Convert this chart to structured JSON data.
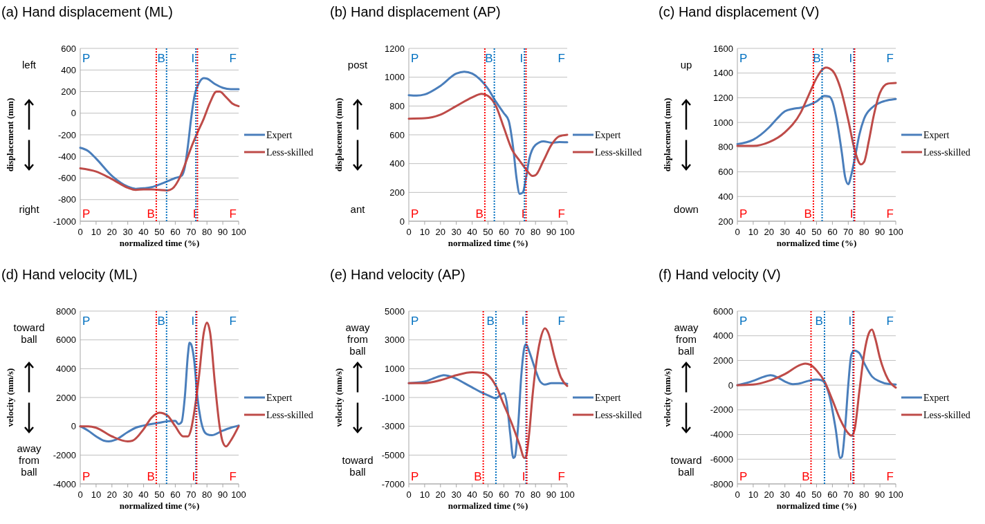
{
  "chart_data": [
    {
      "type": "line",
      "title": "(a) Hand displacement (ML)",
      "xlabel": "normalized time (%)",
      "ylabel": "displacement (mm)",
      "xlim": [
        0,
        100
      ],
      "xticks": [
        0,
        10,
        20,
        30,
        40,
        50,
        60,
        70,
        80,
        90,
        100
      ],
      "ylim": [
        -1000,
        600
      ],
      "yticks": [
        -1000,
        -800,
        -600,
        -400,
        -200,
        0,
        200,
        400,
        600
      ],
      "grid": "y",
      "legend": "right",
      "series": [
        {
          "name": "Expert",
          "color": "#4a7ebb",
          "x": [
            0,
            5,
            10,
            20,
            30,
            35,
            40,
            45,
            50,
            55,
            60,
            64,
            66,
            68,
            70,
            72,
            75,
            78,
            80,
            85,
            90,
            95,
            100
          ],
          "values": [
            -320,
            -350,
            -420,
            -580,
            -680,
            -700,
            -695,
            -685,
            -660,
            -630,
            -600,
            -580,
            -500,
            -300,
            -50,
            150,
            280,
            325,
            320,
            270,
            235,
            222,
            222
          ]
        },
        {
          "name": "Less-skilled",
          "color": "#be4b48",
          "x": [
            0,
            10,
            20,
            30,
            35,
            40,
            45,
            50,
            55,
            58,
            62,
            65,
            68,
            70,
            74,
            78,
            82,
            86,
            88,
            92,
            96,
            100
          ],
          "values": [
            -510,
            -540,
            -610,
            -690,
            -710,
            -705,
            -705,
            -710,
            -715,
            -700,
            -620,
            -520,
            -400,
            -320,
            -180,
            -50,
            100,
            200,
            200,
            150,
            90,
            65
          ]
        }
      ],
      "ref_lines": [
        {
          "axis": "x",
          "value": 54.5,
          "label": "B",
          "color": "#0070c0",
          "line_style": "dotted"
        },
        {
          "axis": "x",
          "value": 73,
          "label": "I",
          "color": "#0070c0",
          "line_style": "dotted"
        },
        {
          "axis": "x",
          "value": 48,
          "label": "B",
          "color": "#ff0000",
          "line_style": "dotted"
        },
        {
          "axis": "x",
          "value": 74,
          "label": "I",
          "color": "#ff0000",
          "line_style": "dotted"
        }
      ],
      "annotations": [
        "left",
        "right",
        "P",
        "F",
        "P",
        "F"
      ]
    },
    {
      "type": "line",
      "title": "(b) Hand displacement (AP)",
      "xlabel": "normalized time (%)",
      "ylabel": "displacement (mm)",
      "xlim": [
        0,
        100
      ],
      "xticks": [
        0,
        10,
        20,
        30,
        40,
        50,
        60,
        70,
        80,
        90,
        100
      ],
      "ylim": [
        0,
        1200
      ],
      "yticks": [
        0,
        200,
        400,
        600,
        800,
        1000,
        1200
      ],
      "grid": "y",
      "legend": "right",
      "series": [
        {
          "name": "Expert",
          "color": "#4a7ebb",
          "x": [
            0,
            5,
            10,
            20,
            30,
            35,
            40,
            45,
            50,
            55,
            60,
            63,
            66,
            68,
            70,
            72,
            74,
            76,
            80,
            85,
            90,
            95,
            100
          ],
          "values": [
            875,
            872,
            880,
            940,
            1025,
            1038,
            1025,
            985,
            920,
            830,
            750,
            700,
            500,
            300,
            190,
            200,
            300,
            430,
            530,
            555,
            545,
            550,
            548
          ]
        },
        {
          "name": "Less-skilled",
          "color": "#be4b48",
          "x": [
            0,
            10,
            20,
            30,
            40,
            46,
            50,
            55,
            60,
            65,
            70,
            74,
            78,
            80,
            85,
            90,
            95,
            100
          ],
          "values": [
            712,
            715,
            740,
            800,
            860,
            885,
            870,
            800,
            650,
            500,
            420,
            360,
            315,
            320,
            420,
            530,
            590,
            600
          ]
        }
      ],
      "ref_lines": [
        {
          "axis": "x",
          "value": 54,
          "label": "B",
          "color": "#0070c0",
          "line_style": "dotted"
        },
        {
          "axis": "x",
          "value": 73,
          "label": "I",
          "color": "#0070c0",
          "line_style": "dotted"
        },
        {
          "axis": "x",
          "value": 48,
          "label": "B",
          "color": "#ff0000",
          "line_style": "dotted"
        },
        {
          "axis": "x",
          "value": 74,
          "label": "I",
          "color": "#ff0000",
          "line_style": "dotted"
        }
      ],
      "annotations": [
        "post",
        "ant",
        "P",
        "F",
        "P",
        "F"
      ]
    },
    {
      "type": "line",
      "title": "(c) Hand displacement (V)",
      "xlabel": "normalized time (%)",
      "ylabel": "displacement (mm)",
      "xlim": [
        0,
        100
      ],
      "xticks": [
        0,
        10,
        20,
        30,
        40,
        50,
        60,
        70,
        80,
        90,
        100
      ],
      "ylim": [
        200,
        1600
      ],
      "yticks": [
        200,
        400,
        600,
        800,
        1000,
        1200,
        1400,
        1600
      ],
      "grid": "y",
      "legend": "right",
      "series": [
        {
          "name": "Expert",
          "color": "#4a7ebb",
          "x": [
            0,
            10,
            20,
            25,
            30,
            35,
            40,
            45,
            50,
            55,
            58,
            60,
            63,
            66,
            68,
            70,
            72,
            74,
            77,
            80,
            85,
            90,
            95,
            100
          ],
          "values": [
            825,
            860,
            960,
            1030,
            1090,
            1110,
            1120,
            1140,
            1170,
            1215,
            1210,
            1170,
            1000,
            750,
            560,
            500,
            580,
            700,
            900,
            1030,
            1120,
            1160,
            1180,
            1190
          ]
        },
        {
          "name": "Less-skilled",
          "color": "#be4b48",
          "x": [
            0,
            10,
            20,
            30,
            40,
            45,
            50,
            53,
            56,
            60,
            65,
            70,
            74,
            78,
            80,
            83,
            86,
            90,
            95,
            100
          ],
          "values": [
            810,
            810,
            840,
            920,
            1080,
            1220,
            1360,
            1420,
            1445,
            1420,
            1280,
            1020,
            780,
            660,
            680,
            850,
            1050,
            1240,
            1315,
            1320
          ]
        }
      ],
      "ref_lines": [
        {
          "axis": "x",
          "value": 53.5,
          "label": "B",
          "color": "#0070c0",
          "line_style": "dotted"
        },
        {
          "axis": "x",
          "value": 73.5,
          "label": "I",
          "color": "#0070c0",
          "line_style": "dotted"
        },
        {
          "axis": "x",
          "value": 48,
          "label": "B",
          "color": "#ff0000",
          "line_style": "dotted"
        },
        {
          "axis": "x",
          "value": 74,
          "label": "I",
          "color": "#ff0000",
          "line_style": "dotted"
        }
      ],
      "annotations": [
        "up",
        "down",
        "P",
        "F",
        "P",
        "F"
      ]
    },
    {
      "type": "line",
      "title": "(d) Hand velocity (ML)",
      "xlabel": "normalized time (%)",
      "ylabel": "velocity (mm/s)",
      "xlim": [
        0,
        100
      ],
      "xticks": [
        0,
        10,
        20,
        30,
        40,
        50,
        60,
        70,
        80,
        90,
        100
      ],
      "ylim": [
        -4000,
        8000
      ],
      "yticks": [
        -4000,
        -2000,
        0,
        2000,
        4000,
        6000,
        8000
      ],
      "grid": "y",
      "legend": "right",
      "series": [
        {
          "name": "Expert",
          "color": "#4a7ebb",
          "x": [
            0,
            5,
            10,
            15,
            18,
            22,
            30,
            35,
            40,
            50,
            55,
            60,
            62,
            64,
            66,
            68,
            69,
            70,
            72,
            74,
            76,
            78,
            80,
            83,
            90,
            95,
            100
          ],
          "values": [
            0,
            -300,
            -700,
            -1000,
            -1050,
            -950,
            -400,
            -100,
            50,
            250,
            350,
            380,
            150,
            300,
            2000,
            5000,
            5800,
            5700,
            4500,
            2000,
            500,
            -300,
            -550,
            -620,
            -300,
            -100,
            50
          ]
        },
        {
          "name": "Less-skilled",
          "color": "#be4b48",
          "x": [
            0,
            5,
            10,
            20,
            30,
            33,
            40,
            45,
            50,
            55,
            60,
            65,
            68,
            70,
            72,
            75,
            78,
            80,
            82,
            85,
            88,
            90,
            92,
            95,
            100
          ],
          "values": [
            0,
            0,
            -100,
            -700,
            -1050,
            -1000,
            -200,
            600,
            950,
            750,
            0,
            -700,
            -700,
            -200,
            1000,
            3500,
            6500,
            7200,
            6500,
            3000,
            0,
            -1100,
            -1400,
            -1000,
            0
          ]
        }
      ],
      "ref_lines": [
        {
          "axis": "x",
          "value": 54.5,
          "label": "B",
          "color": "#0070c0",
          "line_style": "dotted"
        },
        {
          "axis": "x",
          "value": 73,
          "label": "I",
          "color": "#0070c0",
          "line_style": "dotted"
        },
        {
          "axis": "x",
          "value": 48,
          "label": "B",
          "color": "#ff0000",
          "line_style": "dotted"
        },
        {
          "axis": "x",
          "value": 73.5,
          "label": "I",
          "color": "#ff0000",
          "line_style": "dotted"
        }
      ],
      "annotations": [
        "toward ball",
        "away from ball",
        "P",
        "F",
        "P",
        "F"
      ]
    },
    {
      "type": "line",
      "title": "(e) Hand velocity (AP)",
      "xlabel": "normalized time (%)",
      "ylabel": "velocity (mm/s)",
      "xlim": [
        0,
        100
      ],
      "xticks": [
        0,
        10,
        20,
        30,
        40,
        50,
        60,
        70,
        80,
        90,
        100
      ],
      "ylim": [
        -7000,
        5000
      ],
      "yticks": [
        -7000,
        -5000,
        -3000,
        -1000,
        1000,
        3000,
        5000
      ],
      "grid": "y",
      "legend": "right",
      "series": [
        {
          "name": "Expert",
          "color": "#4a7ebb",
          "x": [
            0,
            10,
            15,
            20,
            22,
            25,
            30,
            35,
            40,
            45,
            50,
            55,
            58,
            60,
            62,
            64,
            66,
            67,
            69,
            71,
            73,
            74,
            76,
            80,
            83,
            86,
            90,
            95,
            100
          ],
          "values": [
            0,
            100,
            300,
            500,
            550,
            500,
            300,
            0,
            -300,
            -600,
            -850,
            -1050,
            -800,
            -700,
            -1500,
            -3500,
            -5200,
            -5100,
            -3000,
            500,
            2500,
            2700,
            2200,
            900,
            100,
            -100,
            0,
            0,
            -50
          ]
        },
        {
          "name": "Less-skilled",
          "color": "#be4b48",
          "x": [
            0,
            10,
            20,
            30,
            40,
            47,
            50,
            55,
            60,
            65,
            70,
            73,
            74,
            76,
            78,
            80,
            83,
            86,
            88,
            92,
            96,
            100
          ],
          "values": [
            0,
            0,
            200,
            550,
            750,
            700,
            550,
            -200,
            -1500,
            -2800,
            -4300,
            -5200,
            -5100,
            -3500,
            -1000,
            1000,
            3000,
            3800,
            3500,
            1800,
            400,
            -200
          ]
        }
      ],
      "ref_lines": [
        {
          "axis": "x",
          "value": 55,
          "label": "B",
          "color": "#0070c0",
          "line_style": "dotted"
        },
        {
          "axis": "x",
          "value": 74,
          "label": "I",
          "color": "#0070c0",
          "line_style": "dotted"
        },
        {
          "axis": "x",
          "value": 47,
          "label": "B",
          "color": "#ff0000",
          "line_style": "dotted"
        },
        {
          "axis": "x",
          "value": 74.5,
          "label": "I",
          "color": "#ff0000",
          "line_style": "dotted"
        }
      ],
      "annotations": [
        "away from ball",
        "toward ball",
        "P",
        "F",
        "P",
        "F"
      ]
    },
    {
      "type": "line",
      "title": "(f) Hand velocity (V)",
      "xlabel": "normalized time (%)",
      "ylabel": "velocity (mm/s)",
      "xlim": [
        0,
        100
      ],
      "xticks": [
        0,
        10,
        20,
        30,
        40,
        50,
        60,
        70,
        80,
        90,
        100
      ],
      "ylim": [
        -8000,
        6000
      ],
      "yticks": [
        -8000,
        -6000,
        -4000,
        -2000,
        0,
        2000,
        4000,
        6000
      ],
      "grid": "y",
      "legend": "right",
      "series": [
        {
          "name": "Expert",
          "color": "#4a7ebb",
          "x": [
            0,
            10,
            15,
            21,
            25,
            30,
            35,
            38,
            45,
            50,
            53,
            55,
            58,
            62,
            65,
            66,
            68,
            70,
            72,
            74,
            77,
            80,
            85,
            90,
            95,
            100
          ],
          "values": [
            0,
            350,
            600,
            800,
            650,
            300,
            80,
            100,
            350,
            450,
            400,
            200,
            -800,
            -3500,
            -5900,
            -5800,
            -3500,
            0,
            2500,
            2800,
            2600,
            1800,
            700,
            300,
            100,
            50
          ]
        },
        {
          "name": "Less-skilled",
          "color": "#be4b48",
          "x": [
            0,
            10,
            20,
            30,
            40,
            43,
            46,
            50,
            55,
            60,
            65,
            70,
            72,
            74,
            77,
            80,
            83,
            85,
            87,
            90,
            95,
            100
          ],
          "values": [
            0,
            50,
            350,
            900,
            1650,
            1750,
            1650,
            1200,
            300,
            -1200,
            -2800,
            -3900,
            -4100,
            -3600,
            -500,
            2500,
            4200,
            4500,
            3800,
            2200,
            500,
            -200
          ]
        }
      ],
      "ref_lines": [
        {
          "axis": "x",
          "value": 55,
          "label": "B",
          "color": "#0070c0",
          "line_style": "dotted"
        },
        {
          "axis": "x",
          "value": 73,
          "label": "I",
          "color": "#0070c0",
          "line_style": "dotted"
        },
        {
          "axis": "x",
          "value": 46.5,
          "label": "B",
          "color": "#ff0000",
          "line_style": "dotted"
        },
        {
          "axis": "x",
          "value": 73.5,
          "label": "I",
          "color": "#ff0000",
          "line_style": "dotted"
        }
      ],
      "annotations": [
        "away from ball",
        "toward ball",
        "P",
        "F",
        "P",
        "F"
      ]
    }
  ]
}
